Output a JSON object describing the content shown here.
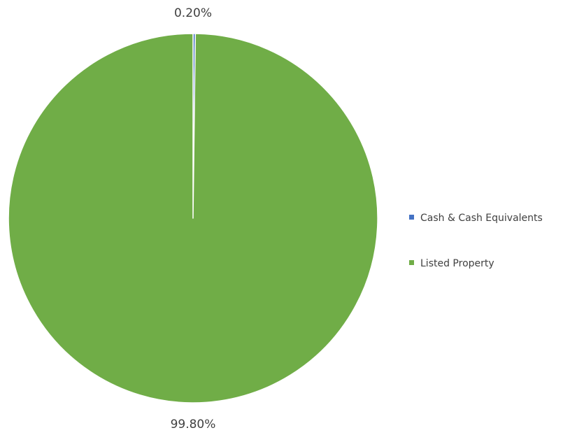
{
  "chart_data": {
    "type": "pie",
    "categories": [
      "Cash & Cash Equivalents",
      "Listed Property"
    ],
    "values": [
      0.2,
      99.8
    ],
    "data_labels": [
      "0.20%",
      "99.80%"
    ],
    "colors": [
      "#4472C4",
      "#70AD47"
    ],
    "start_angle": "12 o'clock, clockwise",
    "legend": {
      "position": "right",
      "entries": [
        "Cash & Cash Equivalents",
        "Listed Property"
      ]
    }
  }
}
